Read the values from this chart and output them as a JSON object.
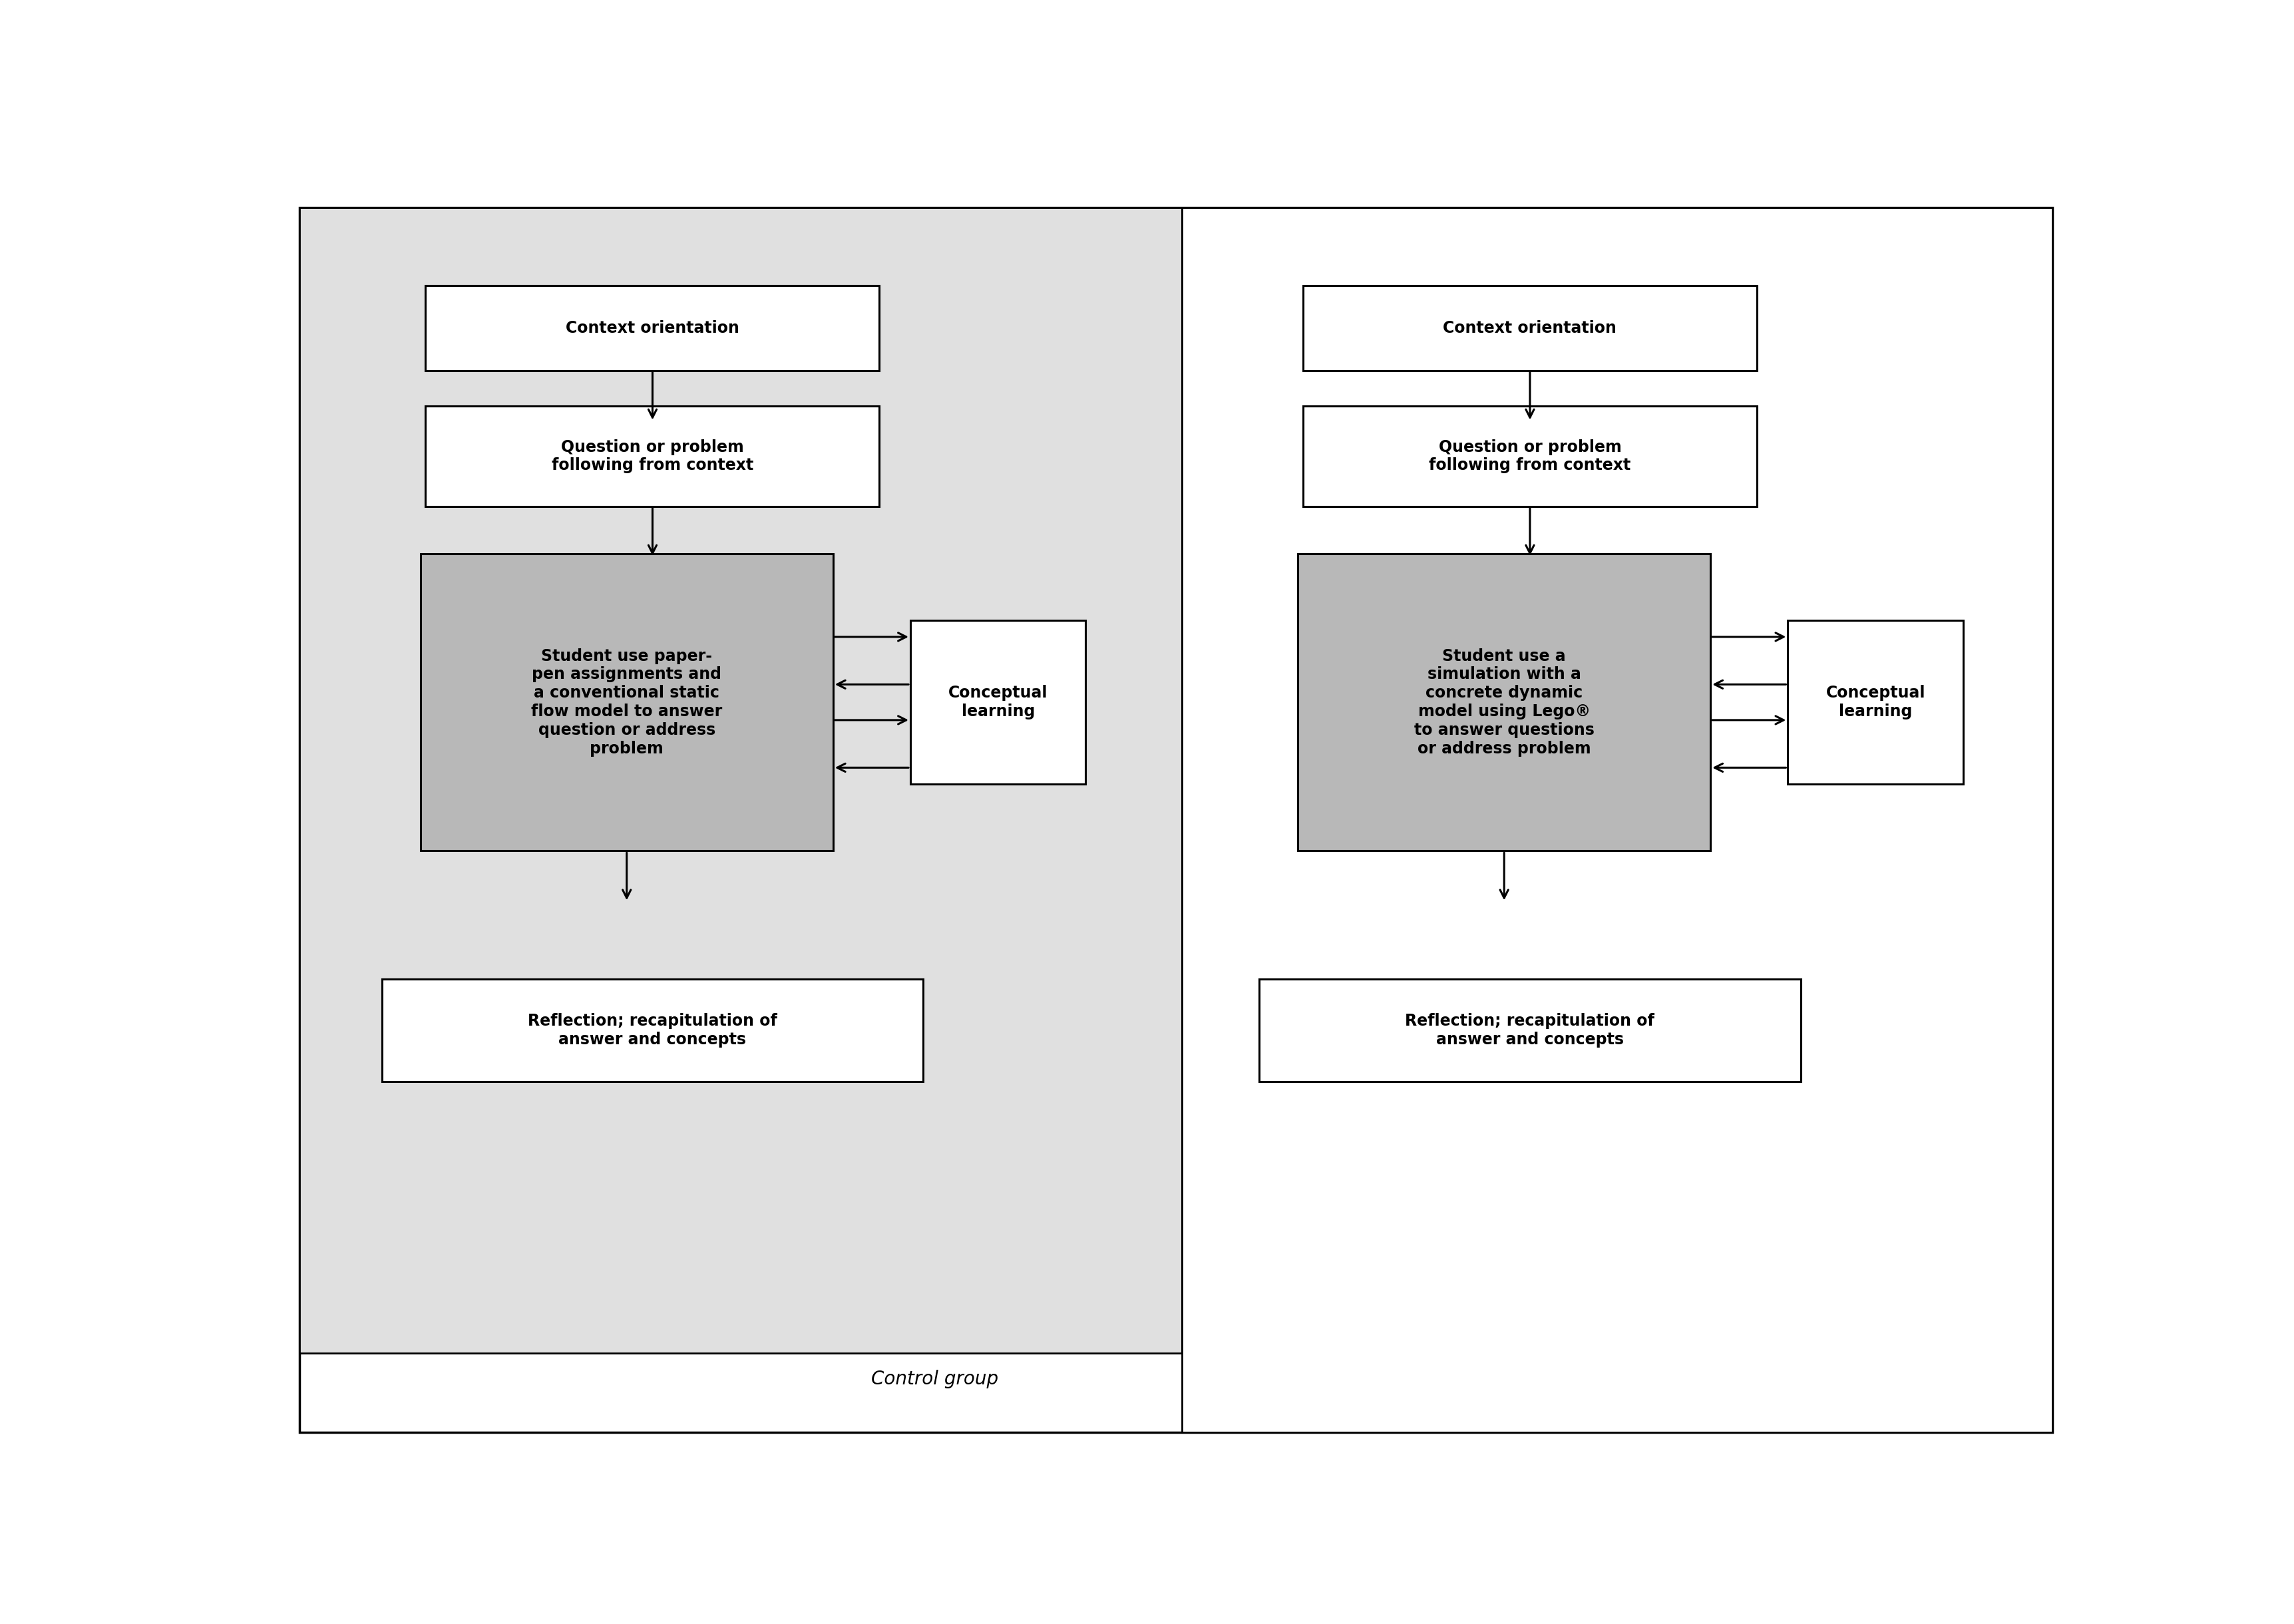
{
  "white": "#ffffff",
  "light_gray": "#e0e0e0",
  "mid_gray": "#b8b8b8",
  "black": "#000000",
  "left_panel": {
    "label": "Control group",
    "box1_text": "Context orientation",
    "box2_text": "Question or problem\nfollowing from context",
    "box3_text": "Student use paper-\npen assignments and\na conventional static\nflow model to answer\nquestion or address\nproblem",
    "box4_text": "Conceptual\nlearning",
    "box5_text": "Reflection; recapitulation of\nanswer and concepts"
  },
  "right_panel": {
    "box1_text": "Context orientation",
    "box2_text": "Question or problem\nfollowing from context",
    "box3_text": "Student use a\nsimulation with a\nconcrete dynamic\nmodel using Lego®\nto answer questions\nor address problem",
    "box4_text": "Conceptual\nlearning",
    "box5_text": "Reflection; recapitulation of\nanswer and concepts"
  }
}
